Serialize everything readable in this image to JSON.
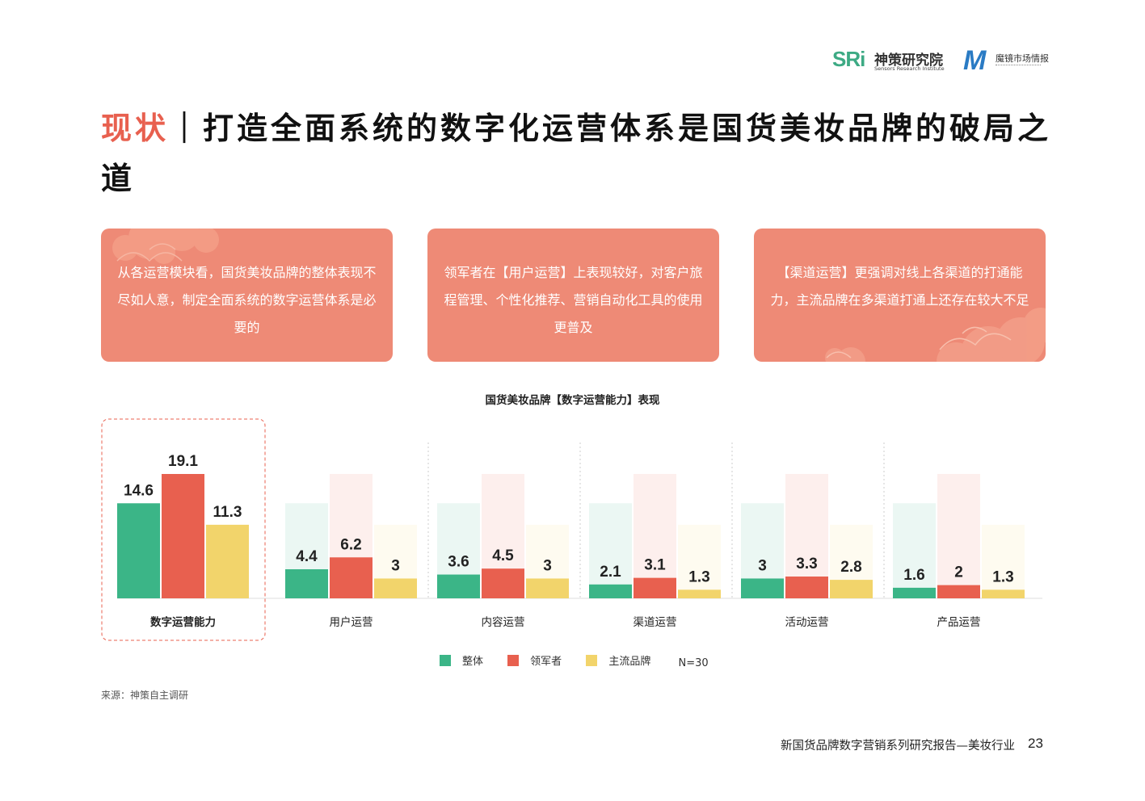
{
  "header": {
    "logo_sri_mark": "SRi",
    "logo_sri_cn": "神策研究院",
    "logo_sri_en": "Sensors Research Institute",
    "logo_m_mark": "M",
    "logo_m_cn": "魔镜市场情报"
  },
  "title": {
    "accent": "现状",
    "separator": "｜",
    "text": "打造全面系统的数字化运营体系是国货美妆品牌的破局之道"
  },
  "cards": [
    {
      "text": "从各运营模块看，国货美妆品牌的整体表现不尽如人意，制定全面系统的数字运营体系是必要的"
    },
    {
      "text": "领军者在【用户运营】上表现较好，对客户旅程管理、个性化推荐、营销自动化工具的使用更普及"
    },
    {
      "text": "【渠道运营】更强调对线上各渠道的打通能力，主流品牌在多渠道打通上还存在较大不足"
    }
  ],
  "colors": {
    "overall": "#3bb587",
    "leader": "#e8604f",
    "mainstream": "#f2d46b",
    "card": "#ee8a76",
    "accent": "#e8604f"
  },
  "chart_data": {
    "type": "bar",
    "title": "国货美妆品牌【数字运营能力】表现",
    "categories": [
      "数字运营能力",
      "用户运营",
      "内容运营",
      "渠道运营",
      "活动运营",
      "产品运营"
    ],
    "series": [
      {
        "name": "整体",
        "values": [
          14.6,
          4.4,
          3.6,
          2.1,
          3,
          1.6
        ]
      },
      {
        "name": "领军者",
        "values": [
          19.1,
          6.2,
          4.5,
          3.1,
          3.3,
          2
        ]
      },
      {
        "name": "主流品牌",
        "values": [
          11.3,
          3,
          3,
          1.3,
          2.8,
          1.3
        ]
      }
    ],
    "ylim": [
      0,
      19.1
    ],
    "legend_position": "bottom-center",
    "annotation": "N=30",
    "highlighted_category": "数字运营能力"
  },
  "source": "来源：神策自主调研",
  "footer": {
    "report_title": "新国货品牌数字营销系列研究报告—美妆行业",
    "page": "23"
  }
}
